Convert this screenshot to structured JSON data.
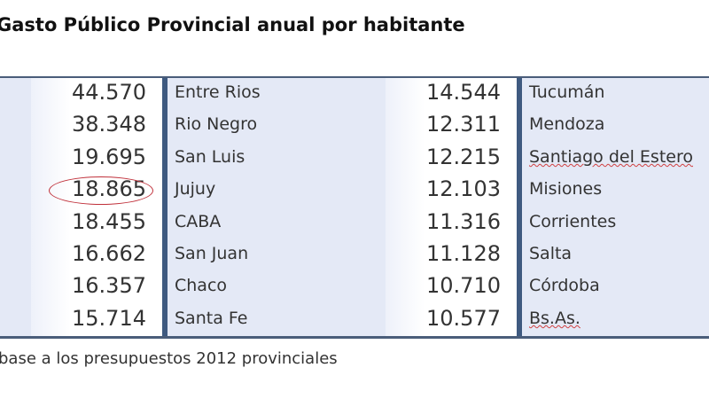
{
  "title": "Gasto Público Provincial anual por habitante",
  "table": {
    "left": [
      {
        "value": "44.570",
        "province": "Entre Rios"
      },
      {
        "value": "38.348",
        "province": "Rio Negro"
      },
      {
        "value": "19.695",
        "province": "San Luis"
      },
      {
        "value": "18.865",
        "province": "Jujuy",
        "highlighted": true
      },
      {
        "value": "18.455",
        "province": "CABA"
      },
      {
        "value": "16.662",
        "province": "San Juan"
      },
      {
        "value": "16.357",
        "province": "Chaco"
      },
      {
        "value": "15.714",
        "province": "Santa Fe"
      }
    ],
    "right": [
      {
        "value": "14.544",
        "province": "Tucumán"
      },
      {
        "value": "12.311",
        "province": "Mendoza"
      },
      {
        "value": "12.215",
        "province": "Santiago del Estero"
      },
      {
        "value": "12.103",
        "province": "Misiones"
      },
      {
        "value": "11.316",
        "province": "Corrientes"
      },
      {
        "value": "11.128",
        "province": "Salta"
      },
      {
        "value": "10.710",
        "province": "Córdoba"
      },
      {
        "value": "10.577",
        "province": "Bs.As."
      }
    ]
  },
  "footnote": "base a los presupuestos 2012 provinciales",
  "colors": {
    "cell_bg": "#e4e9f6",
    "divider": "#3f5a80",
    "highlight_circle": "#c0303a"
  }
}
